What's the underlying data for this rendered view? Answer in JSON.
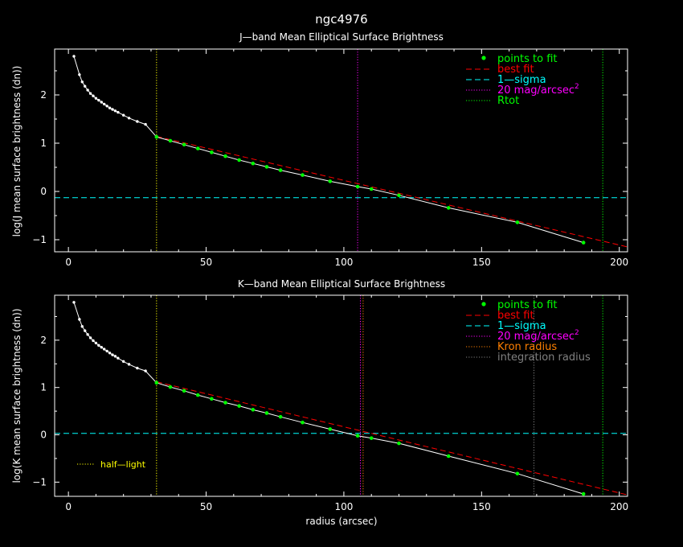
{
  "figure": {
    "title": "ngc4976",
    "xlabel": "radius (arcsec)",
    "colors": {
      "background": "#000000",
      "axes": "#ffffff",
      "fit_points": "#00ff00",
      "best_fit": "#ff0000",
      "sigma": "#00ffff",
      "mag20": "#ff00ff",
      "rtot": "#00ff00",
      "half_light": "#ffff00",
      "kron": "#ff8000",
      "integration": "#808080",
      "data": "#ffffff"
    }
  },
  "chart_data": [
    {
      "type": "scatter",
      "title": "J—band Mean Elliptical Surface Brightness",
      "ylabel": "log(J mean surface brightness (dn))",
      "xlim": [
        -5,
        203
      ],
      "ylim": [
        -1.25,
        2.95
      ],
      "xticks": [
        0,
        50,
        100,
        150,
        200
      ],
      "yticks": [
        -1,
        0,
        1,
        2
      ],
      "x_tick_labels": [
        "0",
        "50",
        "100",
        "150",
        "200"
      ],
      "y_tick_labels": [
        "−1",
        "0",
        "1",
        "2"
      ],
      "legend": {
        "placement": "top-right",
        "entries": [
          {
            "label": "points to fit",
            "style": "dot",
            "color": "#00ff00"
          },
          {
            "label": "best fit",
            "style": "dashed",
            "color": "#ff0000"
          },
          {
            "label": "1—sigma",
            "style": "dashed",
            "color": "#00ffff"
          },
          {
            "label": "20 mag/arcsec",
            "sup": "2",
            "style": "dotted",
            "color": "#ff00ff"
          },
          {
            "label": "Rtot",
            "style": "dotted",
            "color": "#00ff00"
          }
        ]
      },
      "profile_x": [
        2,
        4,
        5,
        6,
        7,
        8,
        9,
        10,
        11,
        12,
        13,
        14,
        15,
        16,
        17,
        18,
        20,
        22,
        25,
        28,
        32,
        37,
        42,
        47,
        52,
        57,
        62,
        67,
        72,
        77,
        85,
        95,
        105,
        110,
        120,
        138,
        163,
        187
      ],
      "profile_y": [
        2.8,
        2.42,
        2.27,
        2.18,
        2.1,
        2.03,
        1.98,
        1.93,
        1.89,
        1.85,
        1.81,
        1.77,
        1.73,
        1.7,
        1.67,
        1.64,
        1.58,
        1.52,
        1.45,
        1.39,
        1.13,
        1.05,
        0.97,
        0.89,
        0.81,
        0.73,
        0.65,
        0.58,
        0.51,
        0.44,
        0.34,
        0.21,
        0.1,
        0.05,
        -0.08,
        -0.34,
        -0.64,
        -1.06
      ],
      "fit_x": [
        32,
        37,
        42,
        47,
        52,
        57,
        62,
        67,
        72,
        77,
        85,
        95,
        105,
        110,
        120,
        138,
        163,
        187
      ],
      "fit_y": [
        1.13,
        1.05,
        0.97,
        0.89,
        0.81,
        0.73,
        0.65,
        0.58,
        0.51,
        0.44,
        0.34,
        0.21,
        0.1,
        0.05,
        -0.08,
        -0.34,
        -0.64,
        -1.06
      ],
      "best_fit_line": {
        "x": [
          32,
          203
        ],
        "y": [
          1.14,
          -1.15
        ]
      },
      "sigma_level": -0.13,
      "vlines": [
        {
          "x": 32,
          "color": "#ffff00",
          "style": "dotted"
        },
        {
          "x": 105,
          "color": "#ff00ff",
          "style": "dotted"
        },
        {
          "x": 194,
          "color": "#00ff00",
          "style": "dotted"
        }
      ],
      "annotations": []
    },
    {
      "type": "scatter",
      "title": "K—band Mean Elliptical Surface Brightness",
      "ylabel": "log(K mean surface brightness (dn))",
      "xlim": [
        -5,
        203
      ],
      "ylim": [
        -1.3,
        2.95
      ],
      "xticks": [
        0,
        50,
        100,
        150,
        200
      ],
      "yticks": [
        -1,
        0,
        1,
        2
      ],
      "x_tick_labels": [
        "0",
        "50",
        "100",
        "150",
        "200"
      ],
      "y_tick_labels": [
        "−1",
        "0",
        "1",
        "2"
      ],
      "legend": {
        "placement": "top-right",
        "entries": [
          {
            "label": "points to fit",
            "style": "dot",
            "color": "#00ff00"
          },
          {
            "label": "best fit",
            "style": "dashed",
            "color": "#ff0000"
          },
          {
            "label": "1—sigma",
            "style": "dashed",
            "color": "#00ffff"
          },
          {
            "label": "20 mag/arcsec",
            "sup": "2",
            "style": "dotted",
            "color": "#ff00ff"
          },
          {
            "label": "Kron radius",
            "style": "dotted",
            "color": "#ff8000"
          },
          {
            "label": "integration radius",
            "style": "dotted",
            "color": "#808080"
          }
        ]
      },
      "profile_x": [
        2,
        4,
        5,
        6,
        7,
        8,
        9,
        10,
        11,
        12,
        13,
        14,
        15,
        16,
        17,
        18,
        20,
        22,
        25,
        28,
        32,
        37,
        42,
        47,
        52,
        57,
        62,
        67,
        72,
        77,
        85,
        95,
        105,
        110,
        120,
        138,
        163,
        187
      ],
      "profile_y": [
        2.8,
        2.44,
        2.29,
        2.2,
        2.12,
        2.05,
        1.99,
        1.94,
        1.89,
        1.85,
        1.81,
        1.77,
        1.73,
        1.69,
        1.66,
        1.62,
        1.55,
        1.49,
        1.41,
        1.35,
        1.1,
        1.01,
        0.93,
        0.84,
        0.76,
        0.68,
        0.61,
        0.53,
        0.46,
        0.38,
        0.26,
        0.12,
        -0.02,
        -0.07,
        -0.18,
        -0.45,
        -0.82,
        -1.25
      ],
      "fit_x": [
        32,
        37,
        42,
        47,
        52,
        57,
        62,
        67,
        72,
        77,
        85,
        95,
        105,
        110,
        120,
        138,
        163,
        187
      ],
      "fit_y": [
        1.1,
        1.01,
        0.93,
        0.84,
        0.76,
        0.68,
        0.61,
        0.53,
        0.46,
        0.38,
        0.26,
        0.12,
        -0.02,
        -0.07,
        -0.18,
        -0.45,
        -0.82,
        -1.25
      ],
      "best_fit_line": {
        "x": [
          32,
          203
        ],
        "y": [
          1.12,
          -1.27
        ]
      },
      "sigma_level": 0.03,
      "vlines": [
        {
          "x": 32,
          "color": "#ffff00",
          "style": "dotted"
        },
        {
          "x": 106,
          "color": "#ff00ff",
          "style": "dotted"
        },
        {
          "x": 107,
          "color": "#ff8000",
          "style": "dotted"
        },
        {
          "x": 169,
          "color": "#808080",
          "style": "dotted"
        },
        {
          "x": 194,
          "color": "#00ff00",
          "style": "dotted"
        }
      ],
      "annotations": [
        {
          "label": "half—light",
          "color": "#ffff00",
          "style": "dotted",
          "placement": "bottom-left"
        }
      ]
    }
  ]
}
